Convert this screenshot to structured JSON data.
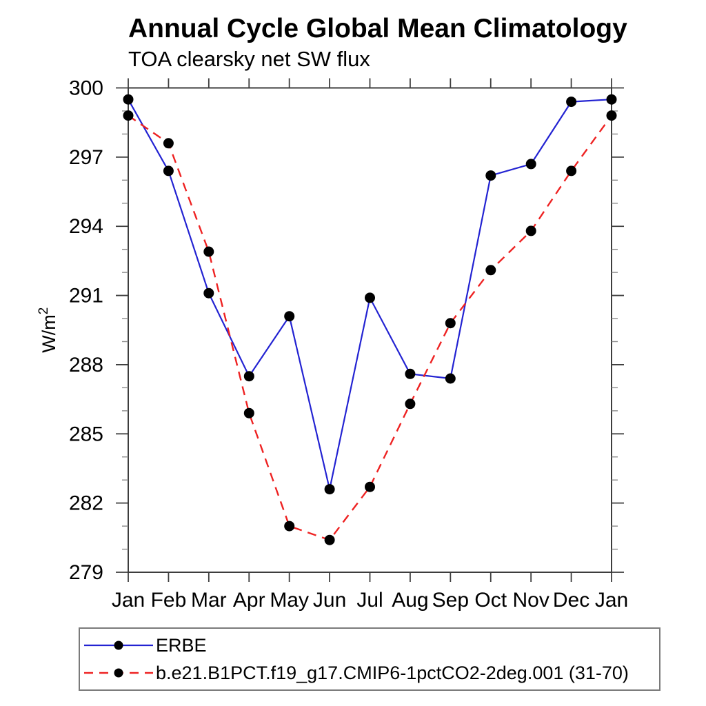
{
  "title": "Annual Cycle Global Mean Climatology",
  "subtitle": "TOA clearsky net SW flux",
  "chart_data": {
    "type": "line",
    "categories": [
      "Jan",
      "Feb",
      "Mar",
      "Apr",
      "May",
      "Jun",
      "Jul",
      "Aug",
      "Sep",
      "Oct",
      "Nov",
      "Dec",
      "Jan"
    ],
    "xlabel": "",
    "ylabel": "W/m²",
    "ylim": [
      279,
      300
    ],
    "ytick_step": 3,
    "yminor_step": 1,
    "ytick_labels": [
      "279",
      "282",
      "285",
      "288",
      "291",
      "294",
      "297",
      "300"
    ],
    "grid": false,
    "legend_position": "bottom-left-box",
    "series": [
      {
        "name": "ERBE",
        "color": "#2323d2",
        "dash": "solid",
        "marker": "filled-circle",
        "marker_color": "#000000",
        "values": [
          299.5,
          296.4,
          291.1,
          287.5,
          290.1,
          282.6,
          290.9,
          287.6,
          287.4,
          296.2,
          296.7,
          299.4,
          299.5
        ]
      },
      {
        "name": "b.e21.B1PCT.f19_g17.CMIP6-1pctCO2-2deg.001 (31-70)",
        "color": "#ee2222",
        "dash": "dashed",
        "marker": "filled-circle",
        "marker_color": "#000000",
        "values": [
          298.8,
          297.6,
          292.9,
          285.9,
          281.0,
          280.4,
          282.7,
          286.3,
          289.8,
          292.1,
          293.8,
          296.4,
          298.8
        ]
      }
    ],
    "colors": {
      "frame": "#3d3d3d",
      "minor_tick": "#8a8a8a",
      "text": "#000000",
      "background": "#ffffff"
    }
  }
}
